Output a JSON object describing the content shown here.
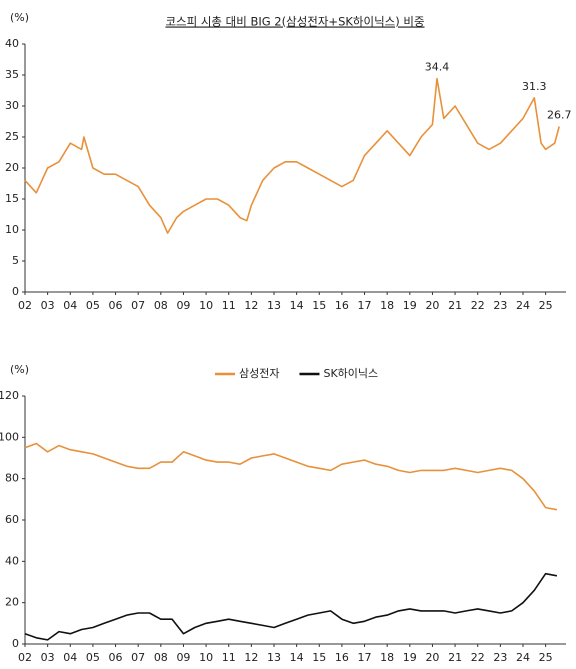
{
  "chart_data": [
    {
      "type": "line",
      "title": "코스피 시총 대비 BIG 2(삼성전자+SK하이닉스) 비중",
      "y_label": "(%)",
      "x": [
        2002.0,
        2002.5,
        2003.0,
        2003.5,
        2004.0,
        2004.5,
        2004.6,
        2005.0,
        2005.5,
        2006.0,
        2006.5,
        2007.0,
        2007.5,
        2008.0,
        2008.3,
        2008.7,
        2009.0,
        2009.5,
        2010.0,
        2010.5,
        2011.0,
        2011.5,
        2011.8,
        2012.0,
        2012.5,
        2013.0,
        2013.5,
        2014.0,
        2014.5,
        2015.0,
        2015.5,
        2016.0,
        2016.5,
        2017.0,
        2017.5,
        2018.0,
        2018.5,
        2019.0,
        2019.5,
        2020.0,
        2020.2,
        2020.5,
        2021.0,
        2021.5,
        2022.0,
        2022.5,
        2023.0,
        2023.5,
        2024.0,
        2024.5,
        2024.8,
        2025.0,
        2025.4,
        2025.6
      ],
      "series": [
        {
          "name": "BIG 2",
          "color": "#e8913a",
          "values": [
            18,
            16,
            20,
            21,
            24,
            23,
            25,
            20,
            19,
            19,
            18,
            17,
            14,
            12,
            9.5,
            12,
            13,
            14,
            15,
            15,
            14,
            12,
            11.5,
            14,
            18,
            20,
            21,
            21,
            20,
            19,
            18,
            17,
            18,
            22,
            24,
            26,
            24,
            22,
            25,
            27,
            34.4,
            28,
            30,
            27,
            24,
            23,
            24,
            26,
            28,
            31.3,
            24,
            23,
            24,
            26.7
          ]
        }
      ],
      "annotations": [
        {
          "text": "34.4",
          "x": 2020.2,
          "y": 34.4
        },
        {
          "text": "31.3",
          "x": 2024.5,
          "y": 31.3
        },
        {
          "text": "26.7",
          "x": 2025.6,
          "y": 26.7
        }
      ],
      "xlim": [
        2002,
        2025.9
      ],
      "xticks": [
        {
          "value": 2002,
          "label": "02"
        },
        {
          "value": 2003,
          "label": "03"
        },
        {
          "value": 2004,
          "label": "04"
        },
        {
          "value": 2005,
          "label": "05"
        },
        {
          "value": 2006,
          "label": "06"
        },
        {
          "value": 2007,
          "label": "07"
        },
        {
          "value": 2008,
          "label": "08"
        },
        {
          "value": 2009,
          "label": "09"
        },
        {
          "value": 2010,
          "label": "10"
        },
        {
          "value": 2011,
          "label": "11"
        },
        {
          "value": 2012,
          "label": "12"
        },
        {
          "value": 2013,
          "label": "13"
        },
        {
          "value": 2014,
          "label": "14"
        },
        {
          "value": 2015,
          "label": "15"
        },
        {
          "value": 2016,
          "label": "16"
        },
        {
          "value": 2017,
          "label": "17"
        },
        {
          "value": 2018,
          "label": "18"
        },
        {
          "value": 2019,
          "label": "19"
        },
        {
          "value": 2020,
          "label": "20"
        },
        {
          "value": 2021,
          "label": "21"
        },
        {
          "value": 2022,
          "label": "22"
        },
        {
          "value": 2023,
          "label": "23"
        },
        {
          "value": 2024,
          "label": "24"
        },
        {
          "value": 2025,
          "label": "25"
        }
      ],
      "ylim": [
        0,
        40
      ],
      "yticks": [
        0,
        5,
        10,
        15,
        20,
        25,
        30,
        35,
        40
      ],
      "grid": false
    },
    {
      "type": "line",
      "y_label": "(%)",
      "x": [
        2002.0,
        2002.5,
        2003.0,
        2003.5,
        2004.0,
        2004.5,
        2005.0,
        2005.5,
        2006.0,
        2006.5,
        2007.0,
        2007.5,
        2008.0,
        2008.5,
        2009.0,
        2009.5,
        2010.0,
        2010.5,
        2011.0,
        2011.5,
        2012.0,
        2012.5,
        2013.0,
        2013.5,
        2014.0,
        2014.5,
        2015.0,
        2015.5,
        2016.0,
        2016.5,
        2017.0,
        2017.5,
        2018.0,
        2018.5,
        2019.0,
        2019.5,
        2020.0,
        2020.5,
        2021.0,
        2021.5,
        2022.0,
        2022.5,
        2023.0,
        2023.5,
        2024.0,
        2024.5,
        2025.0,
        2025.5
      ],
      "series": [
        {
          "name": "삼성전자",
          "color": "#e8913a",
          "values": [
            95,
            97,
            93,
            96,
            94,
            93,
            92,
            90,
            88,
            86,
            85,
            85,
            88,
            88,
            93,
            91,
            89,
            88,
            88,
            87,
            90,
            91,
            92,
            90,
            88,
            86,
            85,
            84,
            87,
            88,
            89,
            87,
            86,
            84,
            83,
            84,
            84,
            84,
            85,
            84,
            83,
            84,
            85,
            84,
            80,
            74,
            66,
            65
          ]
        },
        {
          "name": "SK하이닉스",
          "color": "#111111",
          "values": [
            5,
            3,
            2,
            6,
            5,
            7,
            8,
            10,
            12,
            14,
            15,
            15,
            12,
            12,
            5,
            8,
            10,
            11,
            12,
            11,
            10,
            9,
            8,
            10,
            12,
            14,
            15,
            16,
            12,
            10,
            11,
            13,
            14,
            16,
            17,
            16,
            16,
            16,
            15,
            16,
            17,
            16,
            15,
            16,
            20,
            26,
            34,
            33
          ]
        }
      ],
      "xlim": [
        2002,
        2025.9
      ],
      "xticks": [
        {
          "value": 2002,
          "label": "02"
        },
        {
          "value": 2003,
          "label": "03"
        },
        {
          "value": 2004,
          "label": "04"
        },
        {
          "value": 2005,
          "label": "05"
        },
        {
          "value": 2006,
          "label": "06"
        },
        {
          "value": 2007,
          "label": "07"
        },
        {
          "value": 2008,
          "label": "08"
        },
        {
          "value": 2009,
          "label": "09"
        },
        {
          "value": 2010,
          "label": "10"
        },
        {
          "value": 2011,
          "label": "11"
        },
        {
          "value": 2012,
          "label": "12"
        },
        {
          "value": 2013,
          "label": "13"
        },
        {
          "value": 2014,
          "label": "14"
        },
        {
          "value": 2015,
          "label": "15"
        },
        {
          "value": 2016,
          "label": "16"
        },
        {
          "value": 2017,
          "label": "17"
        },
        {
          "value": 2018,
          "label": "18"
        },
        {
          "value": 2019,
          "label": "19"
        },
        {
          "value": 2020,
          "label": "20"
        },
        {
          "value": 2021,
          "label": "21"
        },
        {
          "value": 2022,
          "label": "22"
        },
        {
          "value": 2023,
          "label": "23"
        },
        {
          "value": 2024,
          "label": "24"
        },
        {
          "value": 2025,
          "label": "25"
        }
      ],
      "ylim": [
        0,
        120
      ],
      "yticks": [
        0,
        20,
        40,
        60,
        80,
        100,
        120
      ],
      "grid": false,
      "legend": "top"
    }
  ]
}
